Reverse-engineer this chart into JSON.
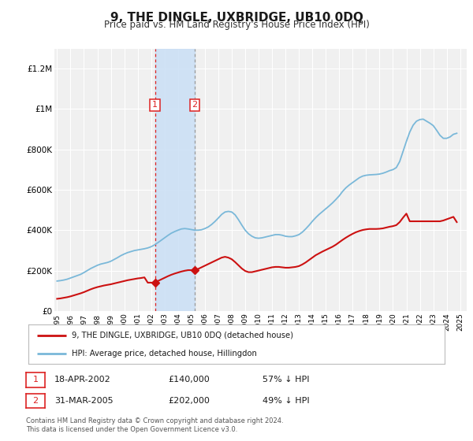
{
  "title": "9, THE DINGLE, UXBRIDGE, UB10 0DQ",
  "subtitle": "Price paid vs. HM Land Registry's House Price Index (HPI)",
  "title_fontsize": 11,
  "subtitle_fontsize": 8.5,
  "xlim": [
    1994.8,
    2025.5
  ],
  "ylim": [
    0,
    1300000
  ],
  "yticks": [
    0,
    200000,
    400000,
    600000,
    800000,
    1000000,
    1200000
  ],
  "ytick_labels": [
    "£0",
    "£200K",
    "£400K",
    "£600K",
    "£800K",
    "£1M",
    "£1.2M"
  ],
  "xtick_years": [
    1995,
    1996,
    1997,
    1998,
    1999,
    2000,
    2001,
    2002,
    2003,
    2004,
    2005,
    2006,
    2007,
    2008,
    2009,
    2010,
    2011,
    2012,
    2013,
    2014,
    2015,
    2016,
    2017,
    2018,
    2019,
    2020,
    2021,
    2022,
    2023,
    2024,
    2025
  ],
  "background_color": "#ffffff",
  "plot_bg_color": "#f0f0f0",
  "grid_color": "#ffffff",
  "sale1_date": 2002.29,
  "sale1_price": 140000,
  "sale1_label": "1",
  "sale2_date": 2005.25,
  "sale2_price": 202000,
  "sale2_label": "2",
  "shade_color": "#cce0f5",
  "vline1_color": "#dd2222",
  "vline2_color": "#999999",
  "hpi_color": "#7ab8d9",
  "price_color": "#cc1111",
  "legend_label_price": "9, THE DINGLE, UXBRIDGE, UB10 0DQ (detached house)",
  "legend_label_hpi": "HPI: Average price, detached house, Hillingdon",
  "table_row1": [
    "1",
    "18-APR-2002",
    "£140,000",
    "57% ↓ HPI"
  ],
  "table_row2": [
    "2",
    "31-MAR-2005",
    "£202,000",
    "49% ↓ HPI"
  ],
  "footer1": "Contains HM Land Registry data © Crown copyright and database right 2024.",
  "footer2": "This data is licensed under the Open Government Licence v3.0.",
  "hpi_x": [
    1995.0,
    1995.25,
    1995.5,
    1995.75,
    1996.0,
    1996.25,
    1996.5,
    1996.75,
    1997.0,
    1997.25,
    1997.5,
    1997.75,
    1998.0,
    1998.25,
    1998.5,
    1998.75,
    1999.0,
    1999.25,
    1999.5,
    1999.75,
    2000.0,
    2000.25,
    2000.5,
    2000.75,
    2001.0,
    2001.25,
    2001.5,
    2001.75,
    2002.0,
    2002.25,
    2002.5,
    2002.75,
    2003.0,
    2003.25,
    2003.5,
    2003.75,
    2004.0,
    2004.25,
    2004.5,
    2004.75,
    2005.0,
    2005.25,
    2005.5,
    2005.75,
    2006.0,
    2006.25,
    2006.5,
    2006.75,
    2007.0,
    2007.25,
    2007.5,
    2007.75,
    2008.0,
    2008.25,
    2008.5,
    2008.75,
    2009.0,
    2009.25,
    2009.5,
    2009.75,
    2010.0,
    2010.25,
    2010.5,
    2010.75,
    2011.0,
    2011.25,
    2011.5,
    2011.75,
    2012.0,
    2012.25,
    2012.5,
    2012.75,
    2013.0,
    2013.25,
    2013.5,
    2013.75,
    2014.0,
    2014.25,
    2014.5,
    2014.75,
    2015.0,
    2015.25,
    2015.5,
    2015.75,
    2016.0,
    2016.25,
    2016.5,
    2016.75,
    2017.0,
    2017.25,
    2017.5,
    2017.75,
    2018.0,
    2018.25,
    2018.5,
    2018.75,
    2019.0,
    2019.25,
    2019.5,
    2019.75,
    2020.0,
    2020.25,
    2020.5,
    2020.75,
    2021.0,
    2021.25,
    2021.5,
    2021.75,
    2022.0,
    2022.25,
    2022.5,
    2022.75,
    2023.0,
    2023.25,
    2023.5,
    2023.75,
    2024.0,
    2024.25,
    2024.5,
    2024.75
  ],
  "hpi_y": [
    148000,
    150000,
    153000,
    157000,
    163000,
    169000,
    175000,
    181000,
    190000,
    200000,
    210000,
    218000,
    226000,
    232000,
    236000,
    240000,
    246000,
    255000,
    264000,
    274000,
    282000,
    289000,
    294000,
    299000,
    302000,
    305000,
    308000,
    312000,
    318000,
    327000,
    338000,
    350000,
    362000,
    374000,
    385000,
    393000,
    400000,
    406000,
    408000,
    406000,
    403000,
    400000,
    400000,
    402000,
    408000,
    416000,
    428000,
    443000,
    460000,
    478000,
    490000,
    493000,
    490000,
    476000,
    452000,
    425000,
    400000,
    382000,
    370000,
    362000,
    360000,
    362000,
    366000,
    370000,
    374000,
    378000,
    378000,
    375000,
    370000,
    368000,
    368000,
    372000,
    378000,
    390000,
    406000,
    424000,
    444000,
    462000,
    478000,
    492000,
    506000,
    520000,
    535000,
    552000,
    570000,
    592000,
    610000,
    624000,
    636000,
    648000,
    660000,
    668000,
    672000,
    674000,
    675000,
    676000,
    678000,
    682000,
    688000,
    695000,
    700000,
    710000,
    740000,
    790000,
    840000,
    886000,
    920000,
    940000,
    948000,
    950000,
    940000,
    930000,
    918000,
    895000,
    870000,
    855000,
    855000,
    862000,
    875000,
    880000
  ],
  "price_y": [
    60000,
    62000,
    65000,
    68000,
    72000,
    77000,
    82000,
    87000,
    93000,
    100000,
    107000,
    113000,
    118000,
    122000,
    126000,
    129000,
    132000,
    136000,
    140000,
    144000,
    148000,
    152000,
    155000,
    158000,
    161000,
    163000,
    166000,
    140000,
    140000,
    140000,
    148000,
    156000,
    164000,
    172000,
    179000,
    185000,
    190000,
    195000,
    199000,
    202000,
    202000,
    202000,
    208000,
    216000,
    224000,
    232000,
    240000,
    248000,
    256000,
    264000,
    268000,
    264000,
    256000,
    242000,
    226000,
    210000,
    198000,
    192000,
    192000,
    196000,
    200000,
    204000,
    208000,
    212000,
    216000,
    218000,
    218000,
    216000,
    214000,
    214000,
    216000,
    218000,
    222000,
    230000,
    240000,
    252000,
    264000,
    276000,
    285000,
    294000,
    302000,
    310000,
    318000,
    328000,
    340000,
    352000,
    363000,
    373000,
    382000,
    390000,
    396000,
    401000,
    404000,
    406000,
    406000,
    406000,
    407000,
    409000,
    413000,
    417000,
    420000,
    425000,
    440000,
    462000,
    482000,
    444000,
    444000,
    444000,
    444000,
    444000,
    444000,
    444000,
    444000,
    444000,
    444000,
    448000,
    454000,
    460000,
    466000,
    440000
  ]
}
